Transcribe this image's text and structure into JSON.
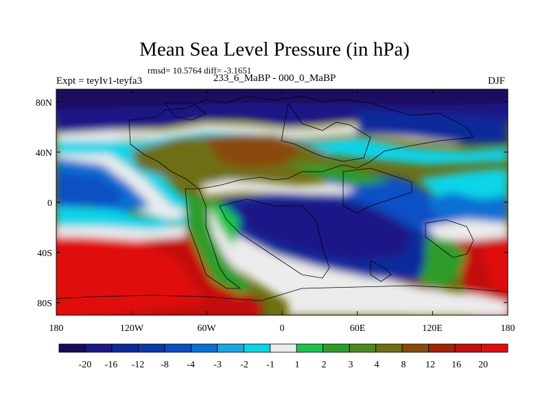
{
  "title": "Mean Sea Level Pressure (in hPa)",
  "stats": "rmsd= 10.5764 diff= -3.1651",
  "experiment": "Expt = teyIv1-teyfa3",
  "subtitle": "233_6_MaBP - 000_0_MaBP",
  "season": "DJF",
  "y_axis_labels": [
    "80N",
    "40N",
    "0",
    "40S",
    "80S"
  ],
  "x_axis_labels": [
    "180",
    "120W",
    "60W",
    "0",
    "60E",
    "120E",
    "180"
  ],
  "colorbar": {
    "labels": [
      "-20",
      "-16",
      "-12",
      "-8",
      "-4",
      "-3",
      "-2",
      "-1",
      "1",
      "2",
      "3",
      "4",
      "8",
      "12",
      "16",
      "20"
    ],
    "colors": [
      "#1a0a5c",
      "#1c1887",
      "#0d2a9c",
      "#0a3aa8",
      "#0a4fc4",
      "#0b6fd3",
      "#1aa8e0",
      "#0dd4e8",
      "#ececec",
      "#1fc24a",
      "#2e9c2a",
      "#4d8a1e",
      "#6e6e12",
      "#8a4a0a",
      "#a52208",
      "#c20f0f",
      "#e00f0f"
    ]
  }
}
